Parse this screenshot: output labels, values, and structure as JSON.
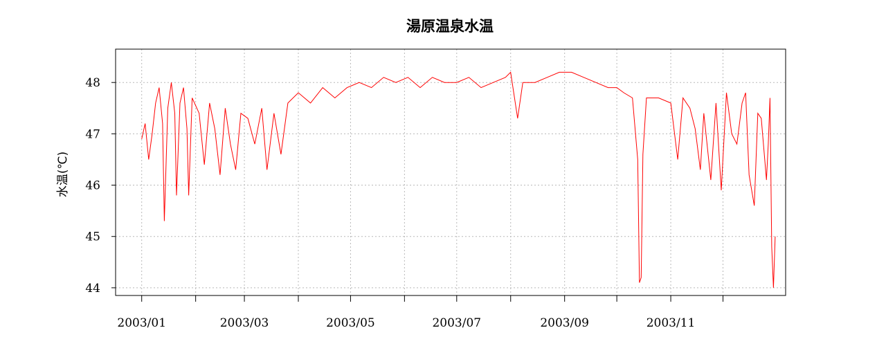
{
  "chart_data": {
    "type": "line",
    "title": "湯原温泉水温",
    "ylabel": "水温(℃)",
    "xlabel": "",
    "x_tick_labels": [
      "2003/01",
      "2003/03",
      "2003/05",
      "2003/07",
      "2003/09",
      "2003/11"
    ],
    "x_tick_dates": [
      "2003-01-01",
      "2003-02-01",
      "2003-03-01",
      "2003-04-01",
      "2003-05-01",
      "2003-06-01",
      "2003-07-01",
      "2003-08-01",
      "2003-09-01",
      "2003-10-01",
      "2003-11-01",
      "2003-12-01"
    ],
    "y_ticks": [
      44,
      45,
      46,
      47,
      48
    ],
    "xlim": [
      "2002-12-17",
      "2004-01-06"
    ],
    "ylim": [
      43.85,
      48.65
    ],
    "grid": true,
    "color": "#ff0000",
    "series": [
      {
        "points": [
          [
            "2003-01-01",
            46.9
          ],
          [
            "2003-01-03",
            47.2
          ],
          [
            "2003-01-05",
            46.5
          ],
          [
            "2003-01-07",
            47.0
          ],
          [
            "2003-01-09",
            47.6
          ],
          [
            "2003-01-11",
            47.9
          ],
          [
            "2003-01-13",
            47.2
          ],
          [
            "2003-01-14",
            45.3
          ],
          [
            "2003-01-16",
            47.5
          ],
          [
            "2003-01-18",
            48.0
          ],
          [
            "2003-01-20",
            47.4
          ],
          [
            "2003-01-21",
            45.8
          ],
          [
            "2003-01-23",
            47.6
          ],
          [
            "2003-01-25",
            47.9
          ],
          [
            "2003-01-27",
            47.1
          ],
          [
            "2003-01-28",
            45.8
          ],
          [
            "2003-01-30",
            47.7
          ],
          [
            "2003-02-03",
            47.4
          ],
          [
            "2003-02-06",
            46.4
          ],
          [
            "2003-02-09",
            47.6
          ],
          [
            "2003-02-12",
            47.1
          ],
          [
            "2003-02-15",
            46.2
          ],
          [
            "2003-02-18",
            47.5
          ],
          [
            "2003-02-21",
            46.8
          ],
          [
            "2003-02-24",
            46.3
          ],
          [
            "2003-02-27",
            47.4
          ],
          [
            "2003-03-03",
            47.3
          ],
          [
            "2003-03-07",
            46.8
          ],
          [
            "2003-03-11",
            47.5
          ],
          [
            "2003-03-14",
            46.3
          ],
          [
            "2003-03-18",
            47.4
          ],
          [
            "2003-03-22",
            46.6
          ],
          [
            "2003-03-26",
            47.6
          ],
          [
            "2003-04-01",
            47.8
          ],
          [
            "2003-04-08",
            47.6
          ],
          [
            "2003-04-15",
            47.9
          ],
          [
            "2003-04-22",
            47.7
          ],
          [
            "2003-04-29",
            47.9
          ],
          [
            "2003-05-06",
            48.0
          ],
          [
            "2003-05-13",
            47.9
          ],
          [
            "2003-05-20",
            48.1
          ],
          [
            "2003-05-27",
            48.0
          ],
          [
            "2003-06-03",
            48.1
          ],
          [
            "2003-06-10",
            47.9
          ],
          [
            "2003-06-17",
            48.1
          ],
          [
            "2003-06-24",
            48.0
          ],
          [
            "2003-07-01",
            48.0
          ],
          [
            "2003-07-08",
            48.1
          ],
          [
            "2003-07-15",
            47.9
          ],
          [
            "2003-07-22",
            48.0
          ],
          [
            "2003-07-29",
            48.1
          ],
          [
            "2003-08-01",
            48.2
          ],
          [
            "2003-08-05",
            47.3
          ],
          [
            "2003-08-08",
            48.0
          ],
          [
            "2003-08-15",
            48.0
          ],
          [
            "2003-08-22",
            48.1
          ],
          [
            "2003-08-29",
            48.2
          ],
          [
            "2003-09-05",
            48.2
          ],
          [
            "2003-09-12",
            48.1
          ],
          [
            "2003-09-19",
            48.0
          ],
          [
            "2003-09-26",
            47.9
          ],
          [
            "2003-10-01",
            47.9
          ],
          [
            "2003-10-05",
            47.8
          ],
          [
            "2003-10-10",
            47.7
          ],
          [
            "2003-10-13",
            46.5
          ],
          [
            "2003-10-14",
            44.1
          ],
          [
            "2003-10-15",
            44.2
          ],
          [
            "2003-10-16",
            46.6
          ],
          [
            "2003-10-18",
            47.7
          ],
          [
            "2003-10-25",
            47.7
          ],
          [
            "2003-11-01",
            47.6
          ],
          [
            "2003-11-05",
            46.5
          ],
          [
            "2003-11-08",
            47.7
          ],
          [
            "2003-11-12",
            47.5
          ],
          [
            "2003-11-15",
            47.1
          ],
          [
            "2003-11-18",
            46.3
          ],
          [
            "2003-11-20",
            47.4
          ],
          [
            "2003-11-24",
            46.1
          ],
          [
            "2003-11-27",
            47.6
          ],
          [
            "2003-11-30",
            45.9
          ],
          [
            "2003-12-03",
            47.8
          ],
          [
            "2003-12-06",
            47.0
          ],
          [
            "2003-12-09",
            46.8
          ],
          [
            "2003-12-12",
            47.6
          ],
          [
            "2003-12-14",
            47.8
          ],
          [
            "2003-12-16",
            46.2
          ],
          [
            "2003-12-19",
            45.6
          ],
          [
            "2003-12-21",
            47.4
          ],
          [
            "2003-12-23",
            47.3
          ],
          [
            "2003-12-26",
            46.1
          ],
          [
            "2003-12-27",
            46.8
          ],
          [
            "2003-12-28",
            47.7
          ],
          [
            "2003-12-29",
            44.8
          ],
          [
            "2003-12-30",
            44.0
          ],
          [
            "2003-12-31",
            45.0
          ]
        ]
      }
    ]
  }
}
